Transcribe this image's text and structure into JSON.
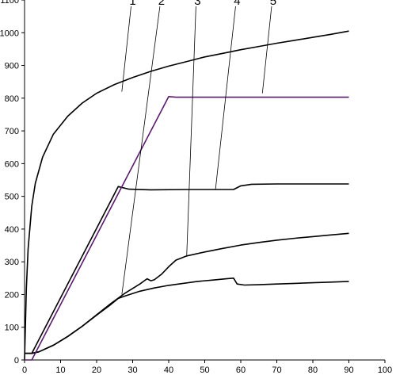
{
  "chart_data": {
    "type": "line",
    "title": "",
    "xlabel": "",
    "ylabel": "",
    "xlim": [
      0,
      100
    ],
    "ylim": [
      0,
      1100
    ],
    "xticks": [
      0,
      10,
      20,
      30,
      40,
      50,
      60,
      70,
      80,
      90,
      100
    ],
    "yticks": [
      0,
      100,
      200,
      300,
      400,
      500,
      600,
      700,
      800,
      900,
      1000,
      1100
    ],
    "grid": false,
    "legend": "none",
    "series": [
      {
        "name": "1",
        "color": "#000000",
        "label_at": [
          30,
          1100
        ],
        "leader_to": [
          27,
          820
        ],
        "points": [
          [
            0,
            0
          ],
          [
            0.5,
            220
          ],
          [
            1,
            340
          ],
          [
            2,
            470
          ],
          [
            3,
            540
          ],
          [
            5,
            620
          ],
          [
            8,
            690
          ],
          [
            12,
            745
          ],
          [
            16,
            785
          ],
          [
            20,
            815
          ],
          [
            25,
            842
          ],
          [
            30,
            863
          ],
          [
            35,
            882
          ],
          [
            40,
            898
          ],
          [
            45,
            912
          ],
          [
            50,
            926
          ],
          [
            55,
            937
          ],
          [
            60,
            948
          ],
          [
            65,
            958
          ],
          [
            70,
            968
          ],
          [
            75,
            977
          ],
          [
            80,
            986
          ],
          [
            85,
            995
          ],
          [
            90,
            1005
          ]
        ]
      },
      {
        "name": "2",
        "color": "#000000",
        "label_at": [
          38,
          1100
        ],
        "leader_to": [
          27,
          200
        ],
        "points": [
          [
            0,
            20
          ],
          [
            2,
            20
          ],
          [
            4,
            25
          ],
          [
            8,
            45
          ],
          [
            12,
            72
          ],
          [
            16,
            103
          ],
          [
            20,
            137
          ],
          [
            24,
            170
          ],
          [
            26,
            188
          ],
          [
            28,
            196
          ],
          [
            32,
            210
          ],
          [
            36,
            220
          ],
          [
            40,
            228
          ],
          [
            44,
            234
          ],
          [
            48,
            240
          ],
          [
            52,
            244
          ],
          [
            56,
            248
          ],
          [
            58,
            250
          ],
          [
            59,
            232
          ],
          [
            61,
            229
          ],
          [
            65,
            230
          ],
          [
            70,
            232
          ],
          [
            75,
            234
          ],
          [
            80,
            236
          ],
          [
            85,
            238
          ],
          [
            90,
            240
          ]
        ]
      },
      {
        "name": "3",
        "color": "#000000",
        "label_at": [
          48,
          1100
        ],
        "leader_to": [
          45,
          320
        ],
        "points": [
          [
            0,
            20
          ],
          [
            2,
            20
          ],
          [
            4,
            25
          ],
          [
            8,
            45
          ],
          [
            12,
            72
          ],
          [
            16,
            103
          ],
          [
            20,
            138
          ],
          [
            24,
            173
          ],
          [
            28,
            205
          ],
          [
            32,
            232
          ],
          [
            34,
            248
          ],
          [
            35,
            242
          ],
          [
            36,
            245
          ],
          [
            38,
            262
          ],
          [
            40,
            285
          ],
          [
            42,
            305
          ],
          [
            45,
            318
          ],
          [
            50,
            330
          ],
          [
            55,
            341
          ],
          [
            60,
            351
          ],
          [
            65,
            359
          ],
          [
            70,
            366
          ],
          [
            75,
            372
          ],
          [
            80,
            377
          ],
          [
            85,
            382
          ],
          [
            90,
            387
          ]
        ]
      },
      {
        "name": "4",
        "color": "#000000",
        "label_at": [
          59,
          1100
        ],
        "leader_to": [
          53,
          522
        ],
        "points": [
          [
            0,
            20
          ],
          [
            2,
            20
          ],
          [
            26,
            530
          ],
          [
            29,
            522
          ],
          [
            35,
            520
          ],
          [
            45,
            521
          ],
          [
            58,
            521
          ],
          [
            60,
            532
          ],
          [
            63,
            537
          ],
          [
            70,
            538
          ],
          [
            80,
            538
          ],
          [
            90,
            538
          ]
        ]
      },
      {
        "name": "5",
        "color": "#5a1a6e",
        "label_at": [
          69,
          1100
        ],
        "leader_to": [
          66,
          815
        ],
        "points": [
          [
            0,
            0
          ],
          [
            2,
            0
          ],
          [
            40,
            805
          ],
          [
            42,
            803
          ],
          [
            50,
            803
          ],
          [
            60,
            803
          ],
          [
            70,
            803
          ],
          [
            80,
            803
          ],
          [
            90,
            803
          ]
        ]
      }
    ]
  }
}
